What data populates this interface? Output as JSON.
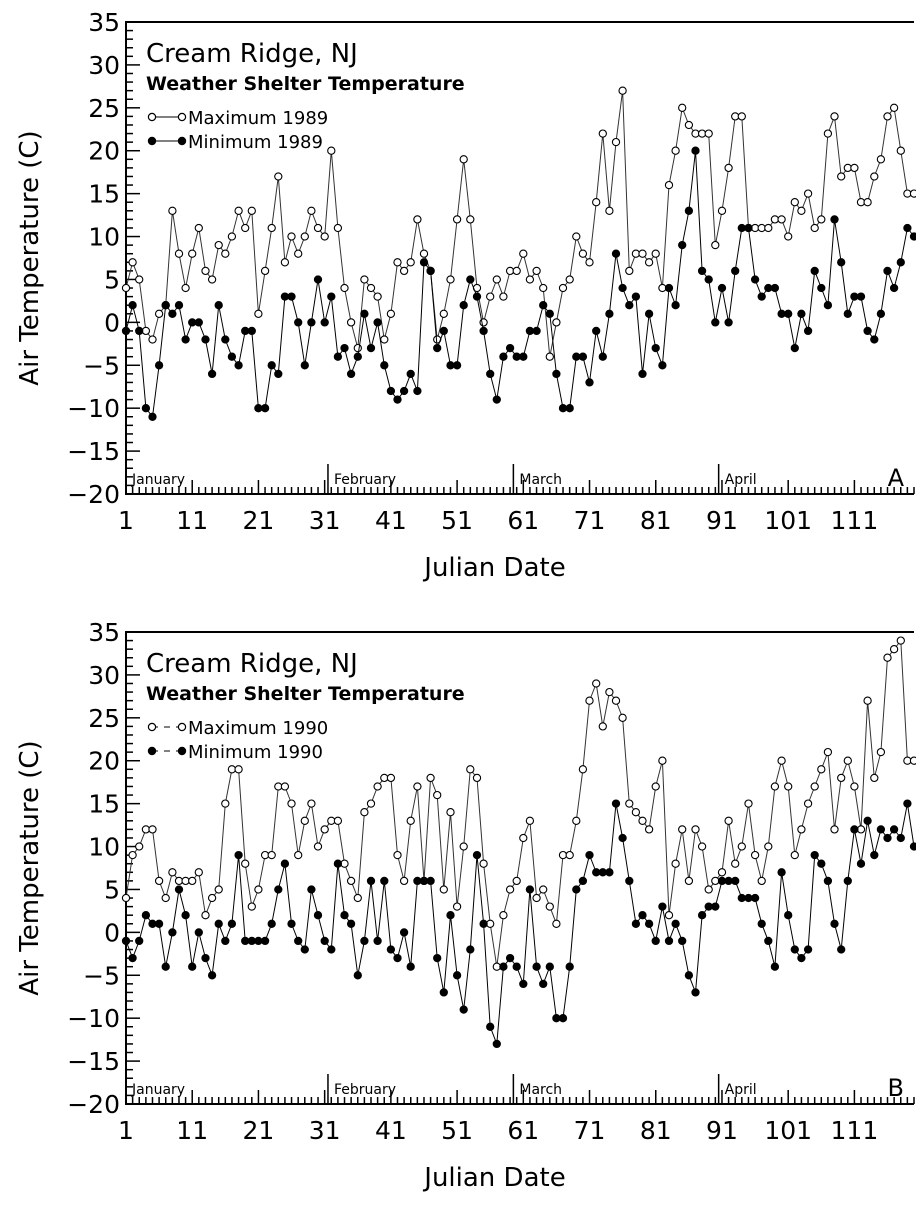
{
  "chart_data": [
    {
      "type": "line",
      "title": "Cream Ridge, NJ",
      "subtitle": "Weather Shelter Temperature",
      "xlabel": "Julian Date",
      "ylabel": "Air Temperature (C)",
      "panel_label": "A",
      "xlim": [
        1,
        120
      ],
      "ylim": [
        -20,
        35
      ],
      "xticks": [
        1,
        11,
        21,
        31,
        41,
        51,
        61,
        71,
        81,
        91,
        101,
        111
      ],
      "yticks": [
        -20,
        -15,
        -10,
        -5,
        0,
        5,
        10,
        15,
        20,
        25,
        30,
        35
      ],
      "ytick_labels": [
        "−20",
        "−15",
        "−10",
        "−5",
        "0",
        "5",
        "10",
        "15",
        "20",
        "25",
        "30",
        "35"
      ],
      "grid": false,
      "legend_position": "top-left",
      "months": [
        {
          "label": "January",
          "start": 1
        },
        {
          "label": "February",
          "start": 32
        },
        {
          "label": "March",
          "start": 60
        },
        {
          "label": "April",
          "start": 91
        }
      ],
      "x": [
        1,
        2,
        3,
        4,
        5,
        6,
        7,
        8,
        9,
        10,
        11,
        12,
        13,
        14,
        15,
        16,
        17,
        18,
        19,
        20,
        21,
        22,
        23,
        24,
        25,
        26,
        27,
        28,
        29,
        30,
        31,
        32,
        33,
        34,
        35,
        36,
        37,
        38,
        39,
        40,
        41,
        42,
        43,
        44,
        45,
        46,
        47,
        48,
        49,
        50,
        51,
        52,
        53,
        54,
        55,
        56,
        57,
        58,
        59,
        60,
        61,
        62,
        63,
        64,
        65,
        66,
        67,
        68,
        69,
        70,
        71,
        72,
        73,
        74,
        75,
        76,
        77,
        78,
        79,
        80,
        81,
        82,
        83,
        84,
        85,
        86,
        87,
        88,
        89,
        90,
        91,
        92,
        93,
        94,
        95,
        96,
        97,
        98,
        99,
        100,
        101,
        102,
        103,
        104,
        105,
        106,
        107,
        108,
        109,
        110,
        111,
        112,
        113,
        114,
        115,
        116,
        117,
        118,
        119,
        120
      ],
      "series": [
        {
          "name": "Maximum 1989",
          "marker": "open-circle",
          "values": [
            4,
            7,
            5,
            -1,
            -2,
            1,
            2,
            13,
            8,
            4,
            8,
            11,
            6,
            5,
            9,
            8,
            10,
            13,
            11,
            13,
            1,
            6,
            11,
            17,
            7,
            10,
            8,
            10,
            13,
            11,
            10,
            20,
            11,
            4,
            0,
            -3,
            5,
            4,
            3,
            -2,
            1,
            7,
            6,
            7,
            12,
            8,
            6,
            -2,
            1,
            5,
            12,
            19,
            12,
            4,
            0,
            3,
            5,
            3,
            6,
            6,
            8,
            5,
            6,
            4,
            -4,
            0,
            4,
            5,
            10,
            8,
            7,
            14,
            22,
            13,
            21,
            27,
            6,
            8,
            8,
            7,
            8,
            4,
            16,
            20,
            25,
            23,
            22,
            22,
            22,
            9,
            13,
            18,
            24,
            24,
            11,
            11,
            11,
            11,
            12,
            12,
            10,
            14,
            13,
            15,
            11,
            12,
            22,
            24,
            17,
            18,
            18,
            14,
            14,
            17,
            19,
            24,
            25,
            20,
            15,
            15
          ]
        },
        {
          "name": "Minimum 1989",
          "marker": "filled-circle",
          "values": [
            -1,
            2,
            -1,
            -10,
            -11,
            -5,
            2,
            1,
            2,
            -2,
            0,
            0,
            -2,
            -6,
            2,
            -2,
            -4,
            -5,
            -1,
            -1,
            -10,
            -10,
            -5,
            -6,
            3,
            3,
            0,
            -5,
            0,
            5,
            0,
            3,
            -4,
            -3,
            -6,
            -4,
            1,
            -3,
            0,
            -5,
            -8,
            -9,
            -8,
            -6,
            -8,
            7,
            6,
            -3,
            -1,
            -5,
            -5,
            2,
            5,
            3,
            -1,
            -6,
            -9,
            -4,
            -3,
            -4,
            -4,
            -1,
            -1,
            2,
            1,
            -6,
            -10,
            -10,
            -4,
            -4,
            -7,
            -1,
            -4,
            1,
            8,
            4,
            2,
            3,
            -6,
            1,
            -3,
            -5,
            4,
            2,
            9,
            13,
            20,
            6,
            5,
            0,
            4,
            0,
            6,
            11,
            11,
            5,
            3,
            4,
            4,
            1,
            1,
            -3,
            1,
            -1,
            6,
            4,
            2,
            12,
            7,
            1,
            3,
            3,
            -1,
            -2,
            1,
            6,
            4,
            7,
            11,
            10
          ]
        }
      ]
    },
    {
      "type": "line",
      "title": "Cream Ridge, NJ",
      "subtitle": "Weather Shelter Temperature",
      "xlabel": "Julian Date",
      "ylabel": "Air Temperature (C)",
      "panel_label": "B",
      "xlim": [
        1,
        120
      ],
      "ylim": [
        -20,
        35
      ],
      "xticks": [
        1,
        11,
        21,
        31,
        41,
        51,
        61,
        71,
        81,
        91,
        101,
        111
      ],
      "yticks": [
        -20,
        -15,
        -10,
        -5,
        0,
        5,
        10,
        15,
        20,
        25,
        30,
        35
      ],
      "ytick_labels": [
        "−20",
        "−15",
        "−10",
        "−5",
        "0",
        "5",
        "10",
        "15",
        "20",
        "25",
        "30",
        "35"
      ],
      "grid": false,
      "legend_position": "top-left",
      "months": [
        {
          "label": "January",
          "start": 1
        },
        {
          "label": "February",
          "start": 32
        },
        {
          "label": "March",
          "start": 60
        },
        {
          "label": "April",
          "start": 91
        }
      ],
      "x": [
        1,
        2,
        3,
        4,
        5,
        6,
        7,
        8,
        9,
        10,
        11,
        12,
        13,
        14,
        15,
        16,
        17,
        18,
        19,
        20,
        21,
        22,
        23,
        24,
        25,
        26,
        27,
        28,
        29,
        30,
        31,
        32,
        33,
        34,
        35,
        36,
        37,
        38,
        39,
        40,
        41,
        42,
        43,
        44,
        45,
        46,
        47,
        48,
        49,
        50,
        51,
        52,
        53,
        54,
        55,
        56,
        57,
        58,
        59,
        60,
        61,
        62,
        63,
        64,
        65,
        66,
        67,
        68,
        69,
        70,
        71,
        72,
        73,
        74,
        75,
        76,
        77,
        78,
        79,
        80,
        81,
        82,
        83,
        84,
        85,
        86,
        87,
        88,
        89,
        90,
        91,
        92,
        93,
        94,
        95,
        96,
        97,
        98,
        99,
        100,
        101,
        102,
        103,
        104,
        105,
        106,
        107,
        108,
        109,
        110,
        111,
        112,
        113,
        114,
        115,
        116,
        117,
        118,
        119,
        120
      ],
      "series": [
        {
          "name": "Maximum 1990",
          "marker": "open-circle",
          "values": [
            4,
            9,
            10,
            12,
            12,
            6,
            4,
            7,
            6,
            6,
            6,
            7,
            2,
            4,
            5,
            15,
            19,
            19,
            8,
            3,
            5,
            9,
            9,
            17,
            17,
            15,
            9,
            13,
            15,
            10,
            12,
            13,
            13,
            8,
            6,
            4,
            14,
            15,
            17,
            18,
            18,
            9,
            6,
            13,
            17,
            6,
            18,
            16,
            5,
            14,
            3,
            10,
            19,
            18,
            8,
            1,
            -4,
            2,
            5,
            6,
            11,
            13,
            4,
            5,
            3,
            1,
            9,
            9,
            13,
            19,
            27,
            29,
            24,
            28,
            27,
            25,
            15,
            14,
            13,
            12,
            17,
            20,
            2,
            8,
            12,
            6,
            12,
            10,
            5,
            6,
            7,
            13,
            8,
            10,
            15,
            9,
            6,
            10,
            17,
            20,
            17,
            9,
            12,
            15,
            17,
            19,
            21,
            12,
            18,
            20,
            17,
            12,
            27,
            18,
            21,
            32,
            33,
            34,
            20,
            20
          ]
        },
        {
          "name": "Minimum 1990",
          "marker": "filled-circle",
          "values": [
            -1,
            -3,
            -1,
            2,
            1,
            1,
            -4,
            0,
            5,
            2,
            -4,
            0,
            -3,
            -5,
            1,
            -1,
            1,
            9,
            -1,
            -1,
            -1,
            -1,
            1,
            5,
            8,
            1,
            -1,
            -2,
            5,
            2,
            -1,
            -2,
            8,
            2,
            1,
            -5,
            -1,
            6,
            -1,
            6,
            -2,
            -3,
            0,
            -4,
            6,
            6,
            6,
            -3,
            -7,
            2,
            -5,
            -9,
            -2,
            9,
            1,
            -11,
            -13,
            -4,
            -3,
            -4,
            -6,
            5,
            -4,
            -6,
            -4,
            -10,
            -10,
            -4,
            5,
            6,
            9,
            7,
            7,
            7,
            15,
            11,
            6,
            1,
            2,
            1,
            -1,
            3,
            -1,
            1,
            -1,
            -5,
            -7,
            2,
            3,
            3,
            6,
            6,
            6,
            4,
            4,
            4,
            1,
            -1,
            -4,
            7,
            2,
            -2,
            -3,
            -2,
            9,
            8,
            6,
            1,
            -2,
            6,
            12,
            8,
            13,
            9,
            12,
            11,
            12,
            11,
            15,
            10
          ]
        }
      ]
    }
  ]
}
